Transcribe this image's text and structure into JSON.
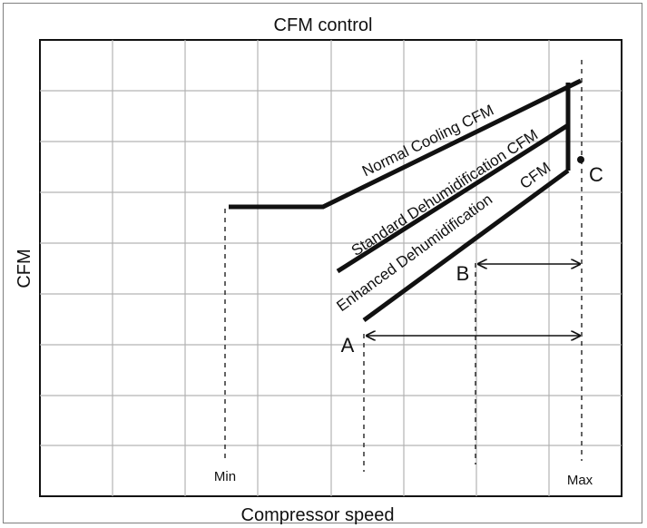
{
  "title": "CFM control",
  "x_axis_label": "Compressor speed",
  "y_axis_label": "CFM",
  "tick_min": "Min",
  "tick_max": "Max",
  "curves": {
    "normal": "Normal Cooling CFM",
    "standard": "Standard Dehumidification CFM",
    "enhanced": "Enhanced Dehumidification",
    "enhanced_suffix": "CFM"
  },
  "points": {
    "a": "A",
    "b": "B",
    "c": "C"
  },
  "colors": {
    "grid": "#b3b3b3",
    "lines": "#111111",
    "frame": "#7f7f7f"
  }
}
